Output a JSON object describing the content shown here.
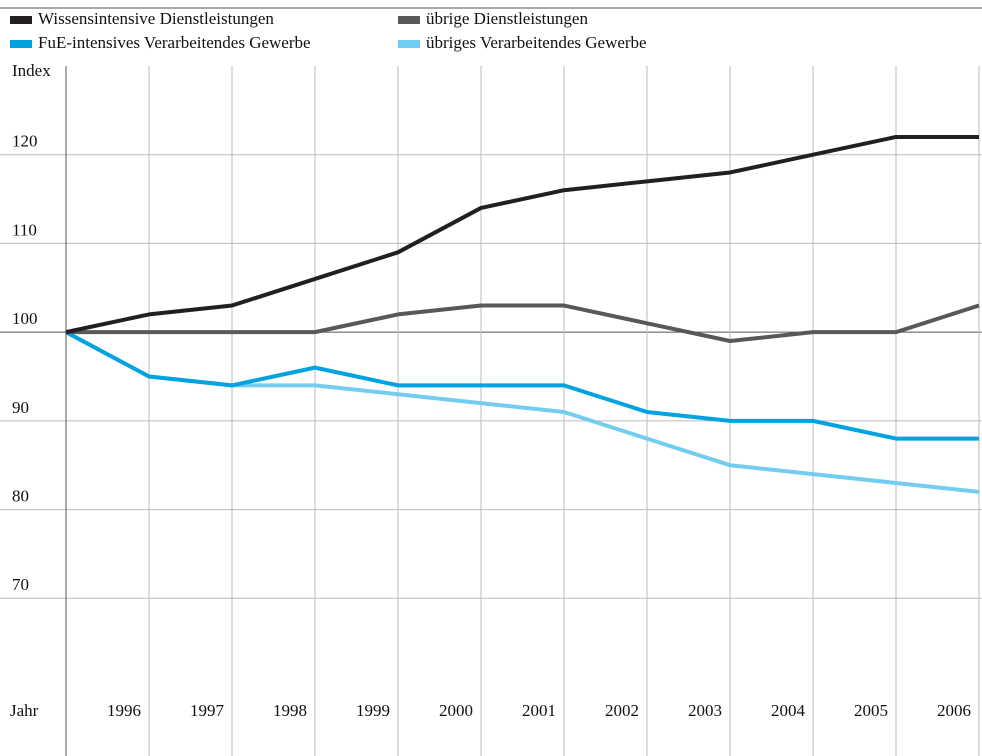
{
  "chart_data": {
    "type": "line",
    "y_label": "Index",
    "x_label": "Jahr",
    "categories": [
      null,
      "1996",
      "1997",
      "1998",
      "1999",
      "2000",
      "2001",
      "2002",
      "2003",
      "2004",
      "2005",
      "2006"
    ],
    "series": [
      {
        "name": "Wissensintensive Dienstleistungen",
        "color": "#231f20",
        "values": [
          100,
          102,
          103,
          106,
          109,
          114,
          116,
          117,
          118,
          120,
          122,
          122
        ]
      },
      {
        "name": "übrige Dienstleistungen",
        "color": "#58585a",
        "values": [
          100,
          100,
          100,
          100,
          102,
          103,
          103,
          101,
          99,
          100,
          100,
          103
        ]
      },
      {
        "name": "FuE-intensives Verarbeitendes Gewerbe",
        "color": "#00a3e0",
        "values": [
          100,
          95,
          94,
          96,
          94,
          94,
          94,
          91,
          90,
          90,
          88,
          88
        ]
      },
      {
        "name": "übriges Verarbeitendes Gewerbe",
        "color": "#72cdf0",
        "values": [
          100,
          95,
          94,
          94,
          93,
          92,
          91,
          88,
          85,
          84,
          83,
          82
        ]
      }
    ],
    "ylim": [
      60,
      130
    ],
    "yticks": [
      70,
      80,
      90,
      100,
      110,
      120
    ],
    "grid": true
  }
}
